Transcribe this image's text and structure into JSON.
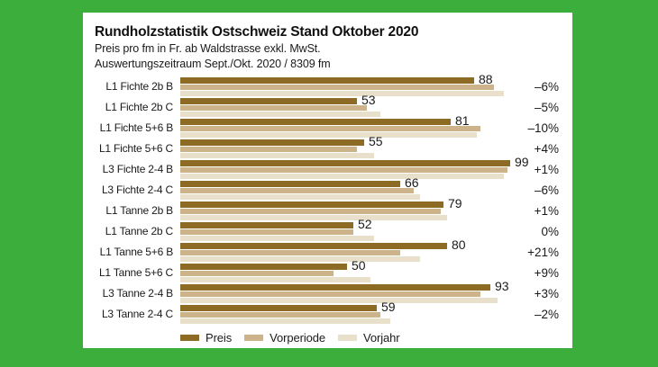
{
  "colors": {
    "frame_green": "#3CAE3C",
    "panel_white": "#FFFFFF",
    "preis_brown": "#8D6B24",
    "vorperiode_tan": "#CCB389",
    "vorjahr_beige": "#E8E0CB",
    "text": "#1A1A1A"
  },
  "chart_data": {
    "type": "bar",
    "orientation": "horizontal",
    "title": "Rundholzstatistik Ostschweiz Stand Oktober 2020",
    "subtitle1": "Preis pro fm in Fr. ab Waldstrasse exkl. MwSt.",
    "subtitle2": "Auswertungszeitraum Sept./Okt. 2020 / 8309 fm",
    "xlim": [
      0,
      100
    ],
    "grid": false,
    "legend_position": "bottom",
    "categories": [
      "L1 Fichte 2b B",
      "L1 Fichte 2b C",
      "L1 Fichte 5+6 B",
      "L1 Fichte 5+6 C",
      "L3 Fichte 2-4 B",
      "L3 Fichte 2-4 C",
      "L1 Tanne 2b B",
      "L1 Tanne 2b C",
      "L1 Tanne 5+6 B",
      "L1 Tanne 5+6 C",
      "L3 Tanne 2-4 B",
      "L3 Tanne 2-4 C"
    ],
    "series": [
      {
        "name": "Preis",
        "color": "#8D6B24",
        "values": [
          88,
          53,
          81,
          55,
          99,
          66,
          79,
          52,
          80,
          50,
          93,
          59
        ]
      },
      {
        "name": "Vorperiode",
        "color": "#CCB389",
        "values": [
          94,
          56,
          90,
          53,
          98,
          70,
          78,
          52,
          66,
          46,
          90,
          60
        ]
      },
      {
        "name": "Vorjahr",
        "color": "#E8E0CB",
        "values": [
          97,
          60,
          89,
          58,
          97,
          72,
          80,
          58,
          72,
          57,
          95,
          63
        ]
      }
    ],
    "value_labels": [
      88,
      53,
      81,
      55,
      99,
      66,
      79,
      52,
      80,
      50,
      93,
      59
    ],
    "change_labels": [
      "–6%",
      "–5%",
      "–10%",
      "+4%",
      "+1%",
      "–6%",
      "+1%",
      "0%",
      "+21%",
      "+9%",
      "+3%",
      "–2%"
    ]
  }
}
